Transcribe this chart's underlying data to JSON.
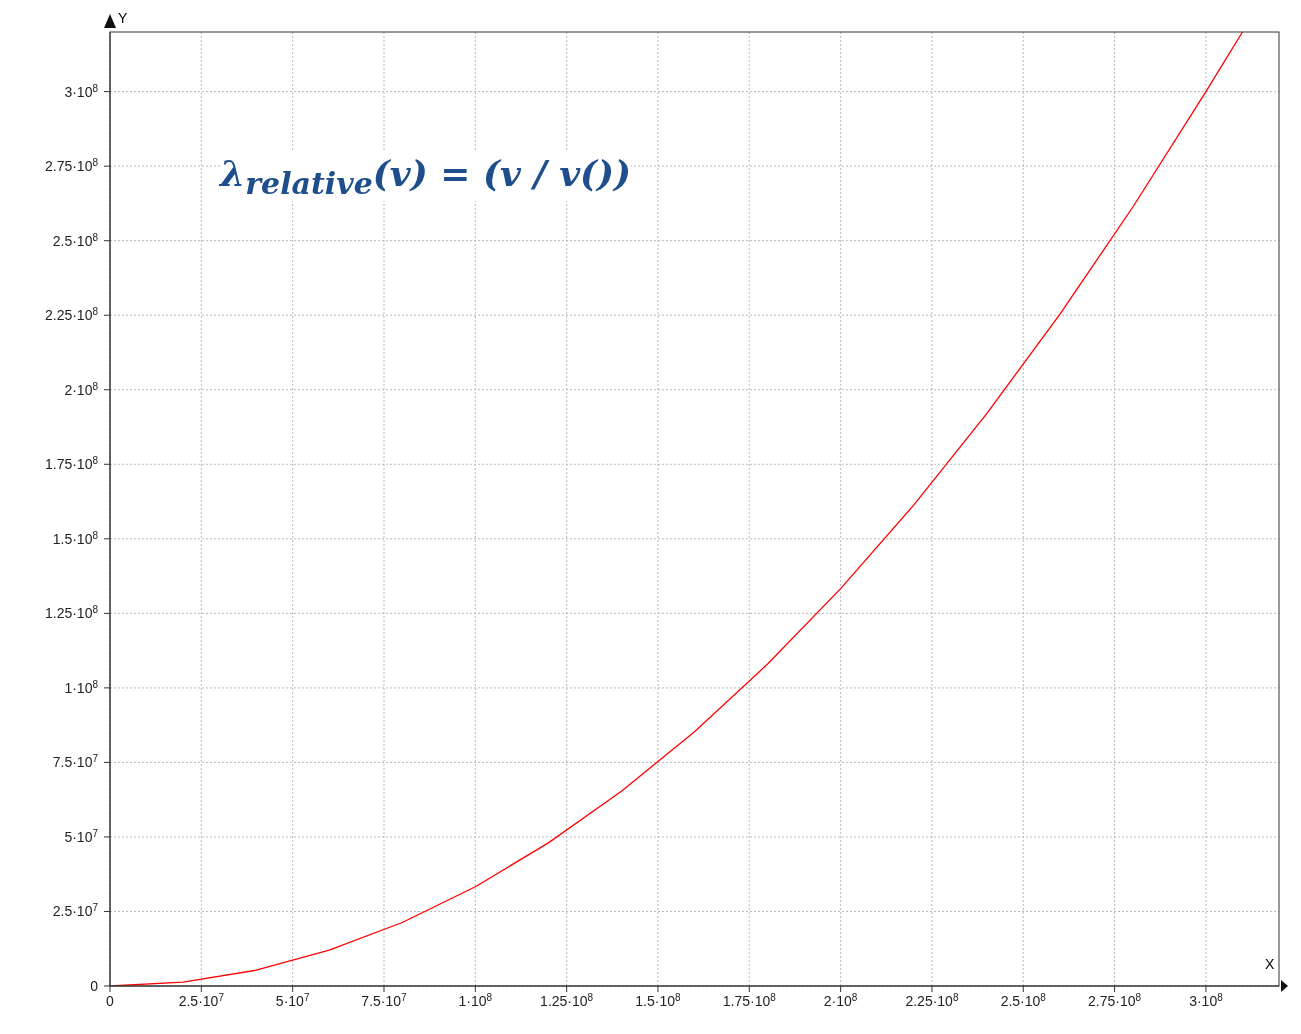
{
  "chart_data": {
    "type": "line",
    "xlabel": "X",
    "ylabel": "Y",
    "x": [
      0,
      20000000,
      40000000,
      60000000,
      80000000,
      100000000,
      120000000,
      140000000,
      160000000,
      180000000,
      200000000,
      220000000,
      240000000,
      260000000,
      280000000,
      300000000,
      310000000
    ],
    "series": [
      {
        "color": "#ff0000",
        "values": [
          0,
          1300000,
          5300000,
          12000000,
          21300000,
          33300000,
          48000000,
          65300000,
          85300000,
          108000000,
          133300000,
          161300000,
          192000000,
          225300000,
          261300000,
          300000000,
          320000000
        ]
      }
    ],
    "xlim": [
      0,
      320000000
    ],
    "ylim": [
      0,
      320000000
    ],
    "xticks": [
      0,
      {
        "value": 25000000,
        "label": "2.5·10$^{7}$"
      },
      {
        "value": 50000000,
        "label": "5·10$^{7}$"
      },
      {
        "value": 75000000,
        "label": "7.5·10$^{7}$"
      },
      {
        "value": 100000000,
        "label": "1·10$^{8}$"
      },
      {
        "value": 125000000,
        "label": "1.25·10$^{8}$"
      },
      {
        "value": 150000000,
        "label": "1.5·10$^{8}$"
      },
      {
        "value": 175000000,
        "label": "1.75·10$^{8}$"
      },
      {
        "value": 200000000,
        "label": "2·10$^{8}$"
      },
      {
        "value": 225000000,
        "label": "2.25·10$^{8}$"
      },
      {
        "value": 250000000,
        "label": "2.5·10$^{8}$"
      },
      {
        "value": 275000000,
        "label": "2.75·10$^{8}$"
      },
      {
        "value": 300000000,
        "label": "3·10$^{8}$"
      }
    ],
    "yticks": [
      0,
      {
        "value": 25000000,
        "label": "2.5·10$^{7}$"
      },
      {
        "value": 50000000,
        "label": "5·10$^{7}$"
      },
      {
        "value": 75000000,
        "label": "7.5·10$^{7}$"
      },
      {
        "value": 100000000,
        "label": "1·10$^{8}$"
      },
      {
        "value": 125000000,
        "label": "1.25·10$^{8}$"
      },
      {
        "value": 150000000,
        "label": "1.5·10$^{8}$"
      },
      {
        "value": 175000000,
        "label": "1.75·10$^{8}$"
      },
      {
        "value": 200000000,
        "label": "2·10$^{8}$"
      },
      {
        "value": 225000000,
        "label": "2.25·10$^{8}$"
      },
      {
        "value": 250000000,
        "label": "2.5·10$^{8}$"
      },
      {
        "value": 275000000,
        "label": "2.75·10$^{8}$"
      },
      {
        "value": 300000000,
        "label": "3·10$^{8}$"
      }
    ],
    "grid": true,
    "marker": "none",
    "line_style": "solid",
    "annotations": [
      "λ$_{relative}$(v) = (v / v())"
    ]
  }
}
